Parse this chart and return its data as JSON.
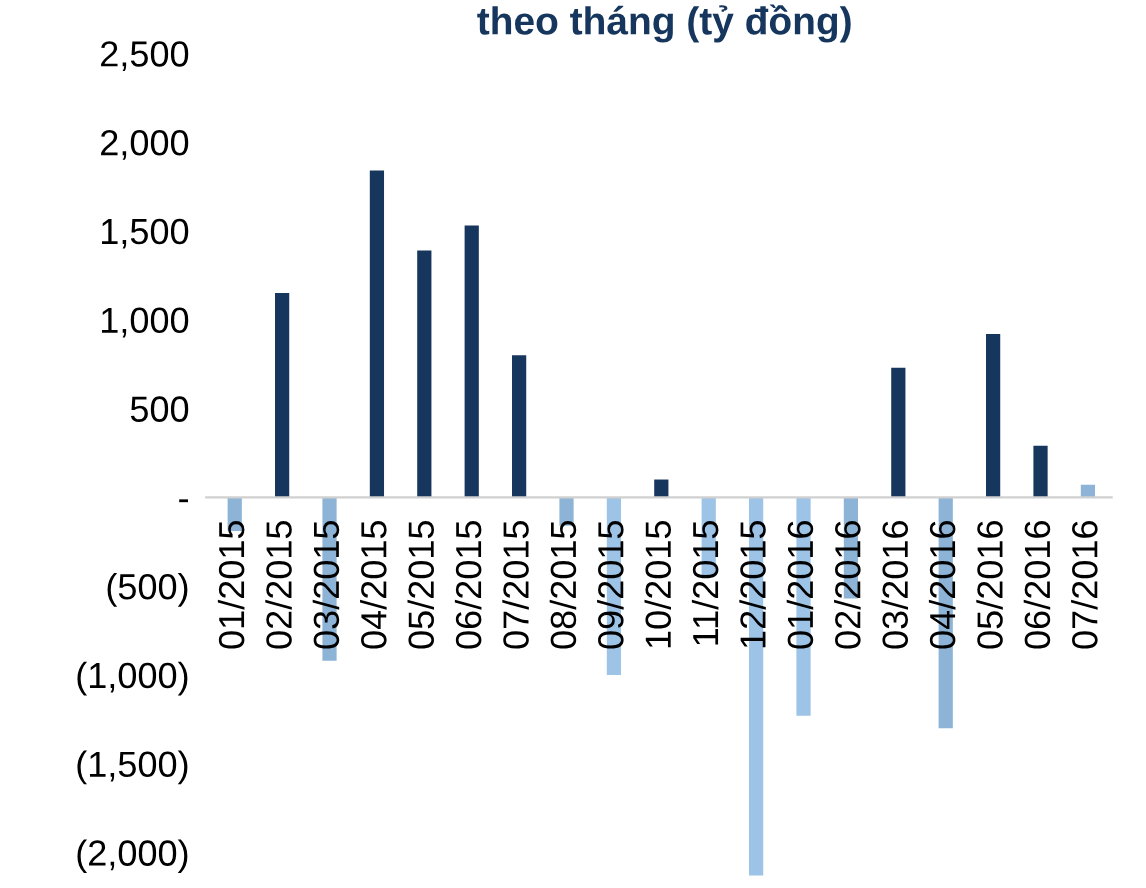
{
  "chart_data": {
    "type": "bar",
    "title": "theo tháng (tỷ đồng)",
    "categories": [
      "01/2015",
      "02/2015",
      "03/2015",
      "04/2015",
      "05/2015",
      "06/2015",
      "07/2015",
      "08/2015",
      "09/2015",
      "10/2015",
      "11/2015",
      "12/2015",
      "01/2016",
      "02/2016",
      "03/2016",
      "04/2016",
      "05/2016",
      "06/2016",
      "07/2016"
    ],
    "values": [
      -190,
      1150,
      -920,
      1840,
      1390,
      1530,
      800,
      -160,
      -1000,
      100,
      -440,
      -2130,
      -1230,
      -570,
      730,
      -1300,
      920,
      290,
      70
    ],
    "colors": [
      "#8db4d7",
      "#17365d",
      "#8db4d7",
      "#17365d",
      "#17365d",
      "#17365d",
      "#17365d",
      "#8db4d7",
      "#9dc3e6",
      "#17365d",
      "#9dc3e6",
      "#9dc3e6",
      "#9dc3e6",
      "#8db4d7",
      "#17365d",
      "#8db4d7",
      "#17365d",
      "#17365d",
      "#8db4d7"
    ],
    "ylim": [
      -2150,
      2500
    ],
    "yticks": [
      {
        "value": 2500,
        "label": "2,500"
      },
      {
        "value": 2000,
        "label": "2,000"
      },
      {
        "value": 1500,
        "label": "1,500"
      },
      {
        "value": 1000,
        "label": "1,000"
      },
      {
        "value": 500,
        "label": "500"
      },
      {
        "value": 0,
        "label": "-"
      },
      {
        "value": -500,
        "label": "(500)"
      },
      {
        "value": -1000,
        "label": "(1,000)"
      },
      {
        "value": -1500,
        "label": "(1,500)"
      },
      {
        "value": -2000,
        "label": "(2,000)"
      }
    ],
    "grid": false,
    "legend": false
  }
}
